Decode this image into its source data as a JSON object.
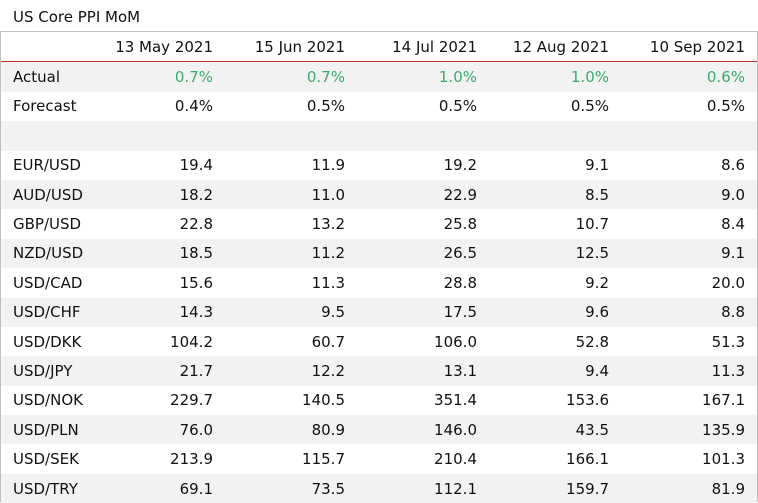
{
  "title": "US Core PPI MoM",
  "columns": [
    "",
    "13 May 2021",
    "15 Jun 2021",
    "14 Jul 2021",
    "12 Aug 2021",
    "10 Sep 2021"
  ],
  "colors": {
    "actual": "#3aaa6a",
    "header_rule": "#c0392b",
    "shade": "#f2f2f2"
  },
  "actual": {
    "label": "Actual",
    "values": [
      "0.7%",
      "0.7%",
      "1.0%",
      "1.0%",
      "0.6%"
    ]
  },
  "forecast": {
    "label": "Forecast",
    "values": [
      "0.4%",
      "0.5%",
      "0.5%",
      "0.5%",
      "0.5%"
    ]
  },
  "pairs": [
    {
      "label": "EUR/USD",
      "values": [
        "19.4",
        "11.9",
        "19.2",
        "9.1",
        "8.6"
      ]
    },
    {
      "label": "AUD/USD",
      "values": [
        "18.2",
        "11.0",
        "22.9",
        "8.5",
        "9.0"
      ]
    },
    {
      "label": "GBP/USD",
      "values": [
        "22.8",
        "13.2",
        "25.8",
        "10.7",
        "8.4"
      ]
    },
    {
      "label": "NZD/USD",
      "values": [
        "18.5",
        "11.2",
        "26.5",
        "12.5",
        "9.1"
      ]
    },
    {
      "label": "USD/CAD",
      "values": [
        "15.6",
        "11.3",
        "28.8",
        "9.2",
        "20.0"
      ]
    },
    {
      "label": "USD/CHF",
      "values": [
        "14.3",
        "9.5",
        "17.5",
        "9.6",
        "8.8"
      ]
    },
    {
      "label": "USD/DKK",
      "values": [
        "104.2",
        "60.7",
        "106.0",
        "52.8",
        "51.3"
      ]
    },
    {
      "label": "USD/JPY",
      "values": [
        "21.7",
        "12.2",
        "13.1",
        "9.4",
        "11.3"
      ]
    },
    {
      "label": "USD/NOK",
      "values": [
        "229.7",
        "140.5",
        "351.4",
        "153.6",
        "167.1"
      ]
    },
    {
      "label": "USD/PLN",
      "values": [
        "76.0",
        "80.9",
        "146.0",
        "43.5",
        "135.9"
      ]
    },
    {
      "label": "USD/SEK",
      "values": [
        "213.9",
        "115.7",
        "210.4",
        "166.1",
        "101.3"
      ]
    },
    {
      "label": "USD/TRY",
      "values": [
        "69.1",
        "73.5",
        "112.1",
        "159.7",
        "81.9"
      ]
    }
  ]
}
